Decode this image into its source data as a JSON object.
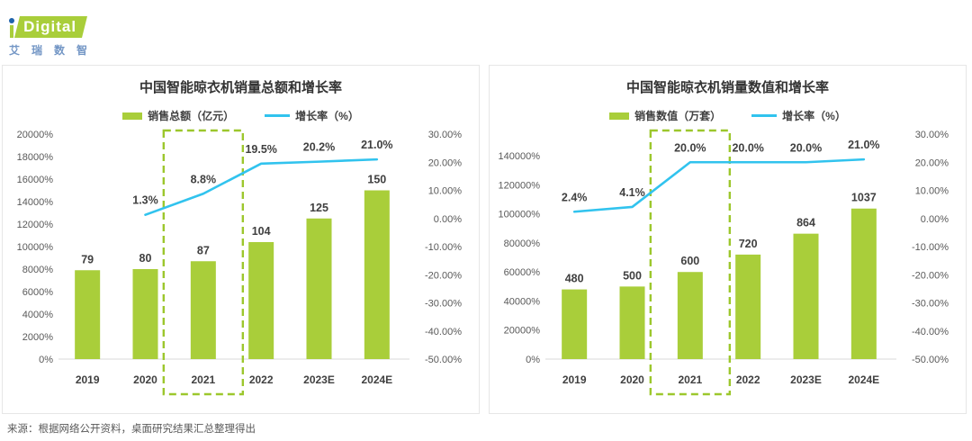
{
  "logo": {
    "brand": "Digital",
    "subtitle": "艾瑞数智"
  },
  "source_note": "来源：根据网络公开资料，桌面研究结果汇总整理得出",
  "colors": {
    "bar_green": "#a9ce3a",
    "line_blue": "#31c3ee",
    "highlight_green": "#9cc72c",
    "logo_blue": "#1f63ac",
    "cn_blue": "#7396c5",
    "panel_border": "#e6e6e6"
  },
  "chart_data": [
    {
      "type": "bar",
      "combo": "bar+line",
      "title": "中国智能晾衣机销量总额和增长率",
      "legend": [
        {
          "swatch": "bar",
          "label": "销售总额（亿元）"
        },
        {
          "swatch": "line",
          "label": "增长率（%）"
        }
      ],
      "categories": [
        "2019",
        "2020",
        "2021",
        "2022",
        "2023E",
        "2024E"
      ],
      "bar_series": {
        "name": "销售总额（亿元）",
        "values": [
          79,
          80,
          87,
          104,
          125,
          150
        ]
      },
      "line_series": {
        "name": "增长率（%）",
        "values": [
          null,
          1.3,
          8.8,
          19.5,
          20.2,
          21.0
        ],
        "labels": [
          "",
          "1.3%",
          "8.8%",
          "19.5%",
          "20.2%",
          "21.0%"
        ]
      },
      "left_axis": {
        "tick_labels": [
          "20000%",
          "18000%",
          "16000%",
          "14000%",
          "12000%",
          "10000%",
          "8000%",
          "6000%",
          "4000%",
          "2000%",
          "0%"
        ],
        "tick_values": [
          20000,
          18000,
          16000,
          14000,
          12000,
          10000,
          8000,
          6000,
          4000,
          2000,
          0
        ],
        "plot_max": 20000,
        "bar_value_multiplier": 100
      },
      "right_axis": {
        "tick_labels": [
          "30.00%",
          "20.00%",
          "10.00%",
          "0.00%",
          "-10.00%",
          "-20.00%",
          "-30.00%",
          "-40.00%",
          "-50.00%"
        ],
        "max": 30,
        "min": -50
      },
      "highlight": {
        "category": "2021",
        "index": 2
      }
    },
    {
      "type": "bar",
      "combo": "bar+line",
      "title": "中国智能晾衣机销量数值和增长率",
      "legend": [
        {
          "swatch": "bar",
          "label": "销售数值（万套）"
        },
        {
          "swatch": "line",
          "label": "增长率（%）"
        }
      ],
      "categories": [
        "2019",
        "2020",
        "2021",
        "2022",
        "2023E",
        "2024E"
      ],
      "bar_series": {
        "name": "销售数值（万套）",
        "values": [
          480,
          500,
          600,
          720,
          864,
          1037
        ]
      },
      "line_series": {
        "name": "增长率（%）",
        "values": [
          2.4,
          4.1,
          20.0,
          20.0,
          20.0,
          21.0
        ],
        "labels": [
          "2.4%",
          "4.1%",
          "20.0%",
          "20.0%",
          "20.0%",
          "21.0%"
        ]
      },
      "left_axis": {
        "tick_labels": [
          "140000%",
          "120000%",
          "100000%",
          "80000%",
          "60000%",
          "40000%",
          "20000%",
          "0%"
        ],
        "tick_values": [
          140000,
          120000,
          100000,
          80000,
          60000,
          40000,
          20000,
          0
        ],
        "plot_max": 155000,
        "bar_value_multiplier": 100
      },
      "right_axis": {
        "tick_labels": [
          "30.00%",
          "20.00%",
          "10.00%",
          "0.00%",
          "-10.00%",
          "-20.00%",
          "-30.00%",
          "-40.00%",
          "-50.00%"
        ],
        "max": 30,
        "min": -50
      },
      "highlight": {
        "category": "2021",
        "index": 2
      }
    }
  ]
}
